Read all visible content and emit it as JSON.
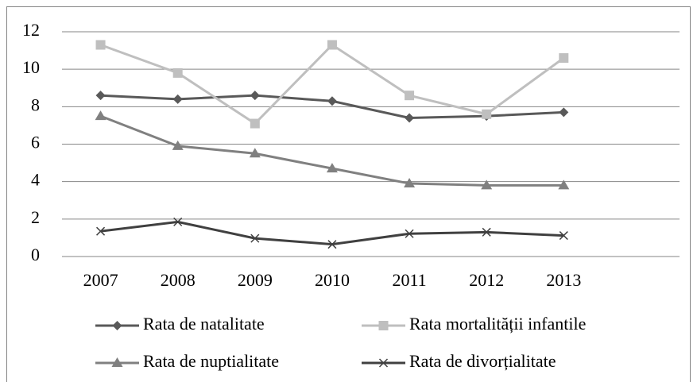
{
  "chart_data": {
    "type": "line",
    "categories": [
      "2007",
      "2008",
      "2009",
      "2010",
      "2011",
      "2012",
      "2013",
      null
    ],
    "series": [
      {
        "name": "Rata de natalitate",
        "color": "#595959",
        "marker": "diamond",
        "values": [
          8.6,
          8.4,
          8.6,
          8.3,
          7.4,
          7.5,
          7.7,
          null
        ]
      },
      {
        "name": "Rata mortalității infantile",
        "color": "#bfbfbf",
        "marker": "square",
        "values": [
          11.3,
          9.8,
          7.1,
          11.3,
          8.6,
          7.6,
          10.6,
          null
        ]
      },
      {
        "name": "Rata de nuptialitate",
        "color": "#808080",
        "marker": "triangle",
        "values": [
          7.5,
          5.9,
          5.5,
          4.7,
          3.9,
          3.8,
          3.8,
          null
        ]
      },
      {
        "name": "Rata de divorțialitate",
        "color": "#404040",
        "marker": "x",
        "values": [
          1.35,
          1.85,
          0.97,
          0.65,
          1.22,
          1.3,
          1.12,
          null
        ]
      }
    ],
    "ylim": [
      0,
      12
    ],
    "yticks": [
      0,
      2,
      4,
      6,
      8,
      10,
      12
    ],
    "grid": true,
    "legend": "bottom"
  }
}
